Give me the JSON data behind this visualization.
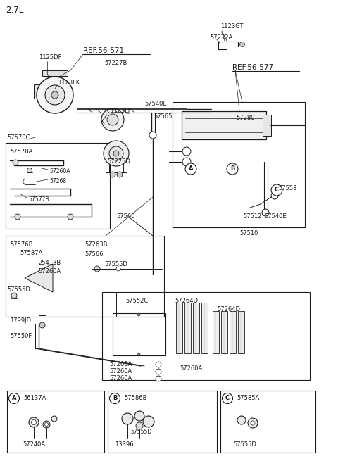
{
  "bg_color": "#ffffff",
  "line_color": "#1a1a1a",
  "text_color": "#1a1a1a",
  "fig_width": 4.8,
  "fig_height": 6.55,
  "dpi": 100,
  "labels": {
    "title": "2.7L",
    "ref_56_571": "REF.56-571",
    "ref_56_577": "REF.56-577",
    "p_1125DF": "1125DF",
    "p_1123LK": "1123LK",
    "p_1123LJ": "1123LJ",
    "p_1123GT": "1123GT",
    "p_57232A": "57232A",
    "p_57227B": "57227B",
    "p_57540E_t": "57540E",
    "p_57280": "57280",
    "p_57570C": "57570C",
    "p_57578A": "57578A",
    "p_57260A": "57260A",
    "p_57268": "57268",
    "p_57577B": "57577B",
    "p_57225D": "57225D",
    "p_57565": "57565",
    "p_57560": "57560",
    "p_57558": "57558",
    "p_57512": "57512",
    "p_57540E_b": "57540E",
    "p_57510": "57510",
    "p_57576B": "57576B",
    "p_57587A": "57587A",
    "p_25413B": "25413B",
    "p_57566": "57566",
    "p_57263B": "57263B",
    "p_57555D": "57555D",
    "p_1799JD": "1799JD",
    "p_57550F": "57550F",
    "p_57552C": "57552C",
    "p_57264D": "57264D",
    "p_56137A": "56137A",
    "p_57240A": "57240A",
    "p_57586B": "57586B",
    "p_13396": "13396",
    "p_57585A": "57585A",
    "cA": "A",
    "cB": "B",
    "cC": "C"
  }
}
